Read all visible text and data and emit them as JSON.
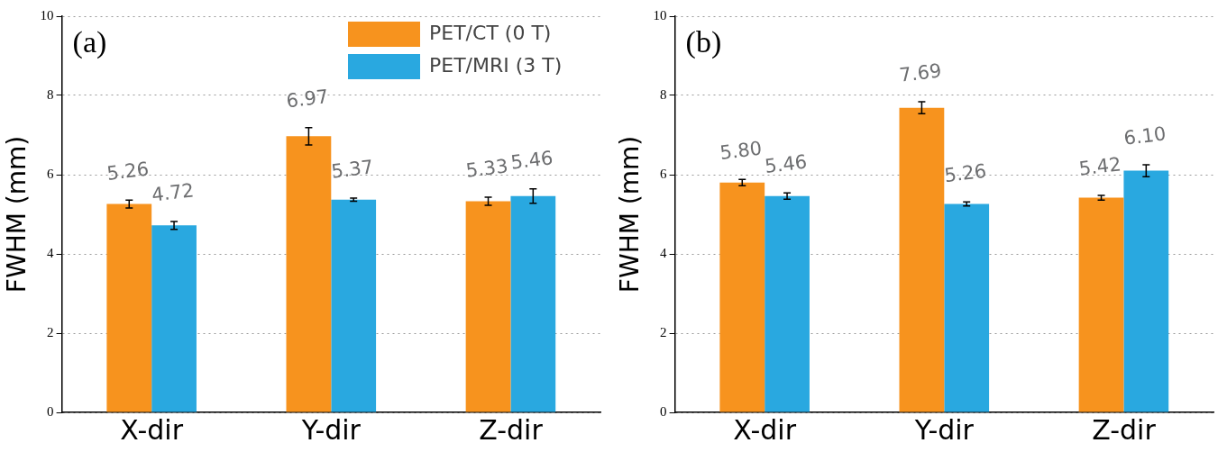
{
  "chart_data": [
    {
      "type": "bar",
      "annotations": [
        "(a)"
      ],
      "ylabel": "FWHM (mm)",
      "categories": [
        "X-dir",
        "Y-dir",
        "Z-dir"
      ],
      "series": [
        {
          "name": "PET/CT (0 T)",
          "color": "#f7931e",
          "values": [
            5.26,
            6.97,
            5.33
          ],
          "errors": [
            0.1,
            0.22,
            0.1
          ],
          "value_labels": [
            "5.26",
            "6.97",
            "5.33"
          ]
        },
        {
          "name": "PET/MRI (3 T)",
          "color": "#29a8e0",
          "values": [
            4.72,
            5.37,
            5.46
          ],
          "errors": [
            0.1,
            0.04,
            0.18
          ],
          "value_labels": [
            "4.72",
            "5.37",
            "5.46"
          ]
        }
      ],
      "ylim": [
        0,
        10
      ],
      "yticks": [
        0,
        2,
        4,
        6,
        8,
        10
      ],
      "grid": "y",
      "legend": "top right"
    },
    {
      "type": "bar",
      "annotations": [
        "(b)"
      ],
      "ylabel": "FWHM (mm)",
      "categories": [
        "X-dir",
        "Y-dir",
        "Z-dir"
      ],
      "series": [
        {
          "color": "#f7931e",
          "values": [
            5.8,
            7.69,
            5.42
          ],
          "errors": [
            0.08,
            0.15,
            0.06
          ],
          "value_labels": [
            "5.80",
            "7.69",
            "5.42"
          ]
        },
        {
          "color": "#29a8e0",
          "values": [
            5.46,
            5.26,
            6.1
          ],
          "errors": [
            0.08,
            0.05,
            0.15
          ],
          "value_labels": [
            "5.46",
            "5.26",
            "6.10"
          ]
        }
      ],
      "ylim": [
        0,
        10
      ],
      "yticks": [
        0,
        2,
        4,
        6,
        8,
        10
      ],
      "grid": "y"
    }
  ]
}
